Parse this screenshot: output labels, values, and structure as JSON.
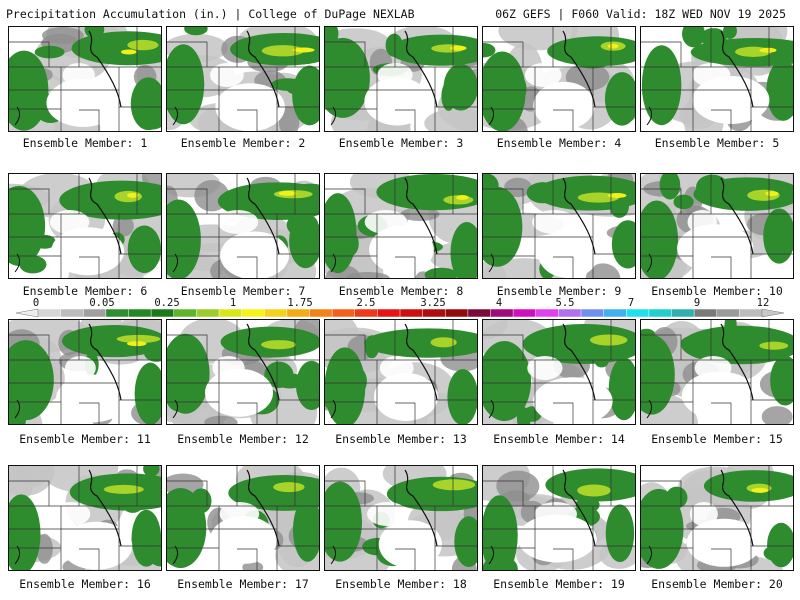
{
  "header": {
    "left": "Precipitation Accumulation (in.) | College of DuPage NEXLAB",
    "right": "06Z GEFS | F060 Valid: 18Z WED NOV 19 2025"
  },
  "members": [
    "Ensemble Member: 1",
    "Ensemble Member: 2",
    "Ensemble Member: 3",
    "Ensemble Member: 4",
    "Ensemble Member: 5",
    "Ensemble Member: 6",
    "Ensemble Member: 7",
    "Ensemble Member: 8",
    "Ensemble Member: 9",
    "Ensemble Member: 10",
    "Ensemble Member: 11",
    "Ensemble Member: 12",
    "Ensemble Member: 13",
    "Ensemble Member: 14",
    "Ensemble Member: 15",
    "Ensemble Member: 16",
    "Ensemble Member: 17",
    "Ensemble Member: 18",
    "Ensemble Member: 19",
    "Ensemble Member: 20"
  ],
  "colorbar": {
    "labels": [
      "0",
      "0.05",
      "0.25",
      "1",
      "1.75",
      "2.5",
      "3.25",
      "4",
      "5.5",
      "7",
      "9",
      "12"
    ],
    "colors": [
      "#d6d6d6",
      "#bdbdbd",
      "#a0a0a0",
      "#2f8f2f",
      "#238823",
      "#1a7a1a",
      "#5fb52a",
      "#9ccc2a",
      "#d8e61a",
      "#f4f41a",
      "#f4d21a",
      "#f4aa14",
      "#f4821a",
      "#f4601a",
      "#ee3a1a",
      "#e61414",
      "#cc1010",
      "#b00e0e",
      "#940a0a",
      "#7a0a3a",
      "#a00a7a",
      "#d010c0",
      "#e040f0",
      "#b070f0",
      "#7090f0",
      "#40b0f0",
      "#20e0f0",
      "#20d0d0",
      "#30b0b0",
      "#7a7a7a",
      "#9a9a9a",
      "#bcbcbc"
    ]
  },
  "legend_colors": {
    "light": "#c4c4c4",
    "medium": "#8f8f8f",
    "green": "#2e8b2e",
    "yellow_green": "#a8d42a",
    "yellow": "#f0f01a"
  }
}
